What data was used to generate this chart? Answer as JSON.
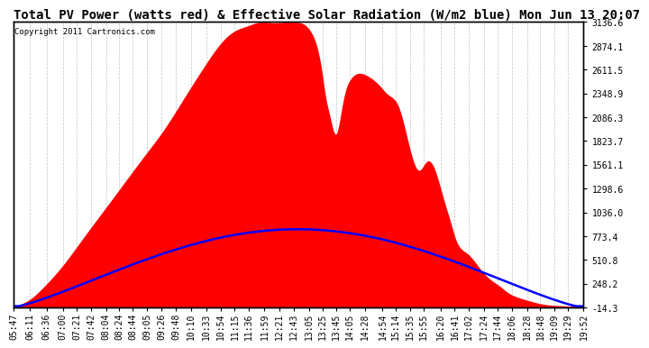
{
  "title": "Total PV Power (watts red) & Effective Solar Radiation (W/m2 blue) Mon Jun 13 20:07",
  "copyright": "Copyright 2011 Cartronics.com",
  "y_right_ticks": [
    3136.6,
    2874.1,
    2611.5,
    2348.9,
    2086.3,
    1823.7,
    1561.1,
    1298.6,
    1036.0,
    773.4,
    510.8,
    248.2,
    -14.3
  ],
  "y_min": -14.3,
  "y_max": 3136.6,
  "x_labels": [
    "05:47",
    "06:11",
    "06:36",
    "07:00",
    "07:21",
    "07:42",
    "08:04",
    "08:24",
    "08:44",
    "09:05",
    "09:26",
    "09:48",
    "10:10",
    "10:33",
    "10:54",
    "11:15",
    "11:36",
    "11:59",
    "12:21",
    "12:43",
    "13:05",
    "13:25",
    "13:45",
    "14:05",
    "14:28",
    "14:54",
    "15:14",
    "15:35",
    "15:55",
    "16:20",
    "16:41",
    "17:02",
    "17:24",
    "17:44",
    "18:06",
    "18:28",
    "18:48",
    "19:09",
    "19:29",
    "19:52"
  ],
  "fill_color": "#FF0000",
  "line_color": "#0000FF",
  "bg_color": "#FFFFFF",
  "grid_color": "#AAAAAA",
  "title_fontsize": 10,
  "tick_fontsize": 7,
  "solar_peak": 850
}
